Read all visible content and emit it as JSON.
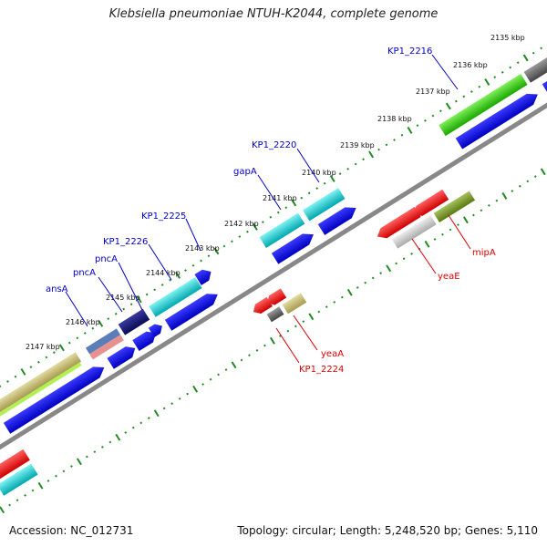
{
  "header": {
    "title": "Klebsiella pneumoniae NTUH-K2044, complete genome"
  },
  "footer": {
    "accession": "Accession: NC_012731",
    "summary": "Topology: circular; Length: 5,248,520 bp; Genes: 5,110"
  },
  "colors": {
    "forward_label": "#0000c8",
    "reverse_label": "#dd0000",
    "backbone": "#808080",
    "tick_mark": "#228b22"
  },
  "ticks": [
    "2135 kbp",
    "2136 kbp",
    "2137 kbp",
    "2138 kbp",
    "2139 kbp",
    "2140 kbp",
    "2141 kbp",
    "2142 kbp",
    "2143 kbp",
    "2144 kbp",
    "2145 kbp",
    "2146 kbp",
    "2147 kbp"
  ],
  "forward_labels": [
    "KP1_2216",
    "KP1_2220",
    "gapA",
    "KP1_2225",
    "KP1_2226",
    "pncA",
    "pncA",
    "ansA"
  ],
  "reverse_labels": [
    "mipA",
    "yeaE",
    "yeaA",
    "KP1_2224"
  ]
}
